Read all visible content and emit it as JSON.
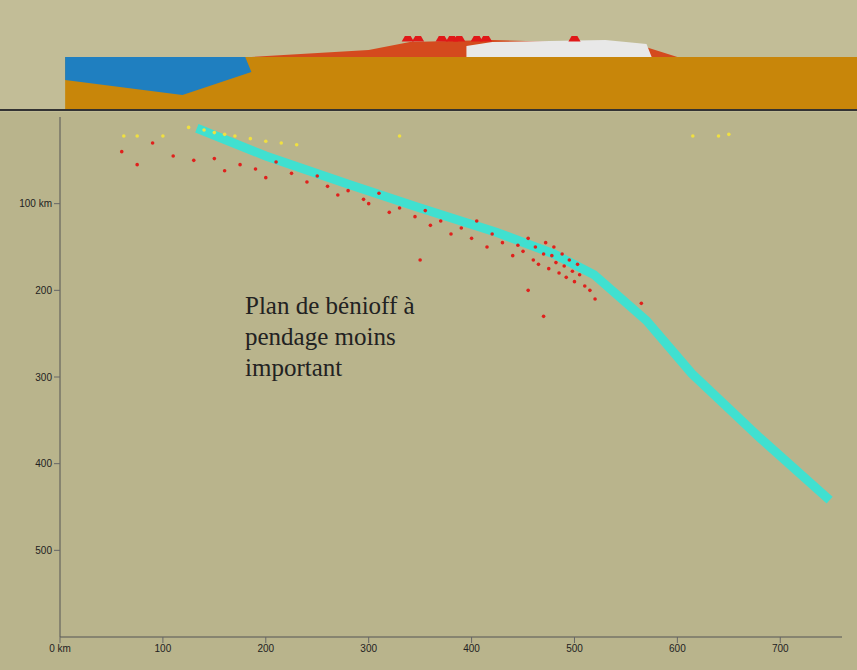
{
  "chart_data": {
    "type": "scatter",
    "xlim": [
      0,
      760
    ],
    "ylim": [
      0,
      600
    ],
    "xticks": [
      {
        "value": 0,
        "label": "0 km"
      },
      100,
      200,
      300,
      400,
      500,
      600,
      700
    ],
    "yticks": [
      {
        "value": 100,
        "label": "100 km"
      },
      200,
      300,
      400,
      500
    ],
    "grid": false,
    "tick_labels": true,
    "annotations": [
      "Plan de bénioff à pendage moins important"
    ],
    "volcanoes": {
      "color": "#e01818",
      "marker": "triangle",
      "x": [
        338,
        348,
        371,
        381,
        388,
        405,
        414,
        500
      ]
    },
    "series": [
      {
        "type": "line",
        "line_style": "solid",
        "color": "#40e0d0",
        "x": [
          133,
          200,
          281,
          350,
          424,
          480,
          519,
          570,
          614,
          680,
          748
        ],
        "values": [
          13,
          45,
          78,
          105,
          133,
          158,
          182,
          235,
          296,
          370,
          442
        ]
      },
      {
        "type": "scatter",
        "marker": "circle",
        "color": "#e0201c",
        "x": [
          60,
          75,
          90,
          110,
          130,
          150,
          160,
          175,
          190,
          200,
          210,
          225,
          240,
          250,
          260,
          270,
          280,
          295,
          300,
          310,
          320,
          330,
          345,
          355,
          360,
          370,
          380,
          390,
          400,
          405,
          415,
          420,
          430,
          440,
          445,
          450,
          455,
          460,
          462,
          465,
          470,
          472,
          475,
          478,
          480,
          482,
          485,
          488,
          490,
          492,
          495,
          498,
          500,
          503,
          505,
          510,
          515,
          520,
          455,
          470,
          350,
          565
        ],
        "values": [
          40,
          55,
          30,
          45,
          50,
          48,
          62,
          55,
          60,
          70,
          52,
          65,
          75,
          68,
          80,
          90,
          85,
          95,
          100,
          88,
          110,
          105,
          115,
          108,
          125,
          120,
          135,
          128,
          140,
          120,
          150,
          135,
          145,
          160,
          148,
          155,
          140,
          165,
          150,
          170,
          158,
          145,
          175,
          160,
          150,
          168,
          180,
          158,
          172,
          185,
          165,
          178,
          190,
          170,
          182,
          195,
          200,
          210,
          200,
          230,
          165,
          215
        ]
      },
      {
        "type": "scatter",
        "marker": "circle",
        "color": "#f0e040",
        "x": [
          62,
          75,
          100,
          125,
          140,
          150,
          160,
          170,
          185,
          200,
          215,
          230,
          330,
          615,
          640,
          650
        ],
        "values": [
          22,
          22,
          22,
          12,
          15,
          18,
          20,
          22,
          25,
          28,
          30,
          32,
          22,
          22,
          22,
          20
        ]
      }
    ]
  }
}
